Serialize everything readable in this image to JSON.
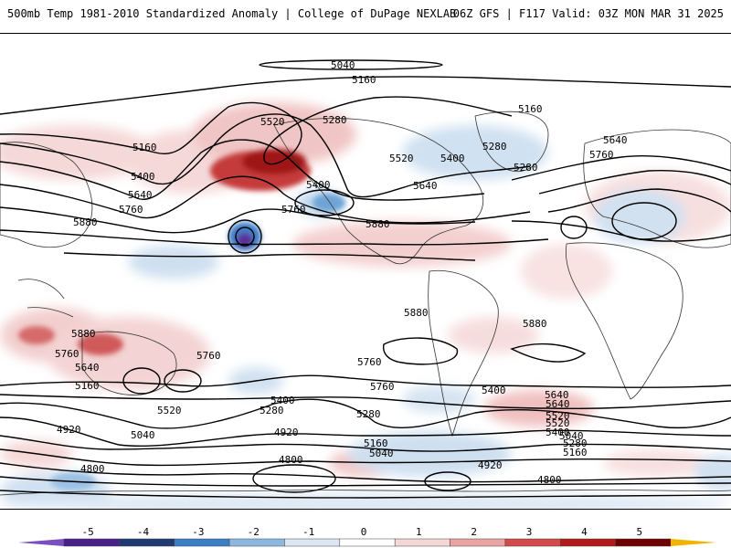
{
  "header": {
    "title": "500mb Temp 1981-2010 Standardized Anomaly | College of DuPage NEXLAB",
    "run_info": "06Z GFS | F117 Valid: 03Z MON MAR 31 2025"
  },
  "map": {
    "contour_labels": [
      "5040",
      "5160",
      "5520",
      "5280",
      "5160",
      "5400",
      "5640",
      "5760",
      "5880",
      "5400",
      "5160",
      "5280",
      "5520",
      "5400",
      "5640",
      "5280",
      "5640",
      "5760",
      "5760",
      "5880",
      "5880",
      "5880",
      "5880",
      "5760",
      "5760",
      "5640",
      "5160",
      "5520",
      "5400",
      "5280",
      "5040",
      "4920",
      "4920",
      "4800",
      "4800",
      "5040",
      "5160",
      "5280",
      "5400",
      "5520",
      "5640",
      "5760",
      "5760",
      "5640",
      "5520",
      "5400",
      "5280",
      "5160",
      "5040",
      "4920",
      "4800"
    ]
  },
  "colorbar": {
    "ticks": [
      "-5",
      "-4",
      "-3",
      "-2",
      "-1",
      "0",
      "1",
      "2",
      "3",
      "4",
      "5"
    ],
    "colors": [
      "#4b1f8a",
      "#1f3a73",
      "#3a7fc6",
      "#8cb8e0",
      "#dbe7f3",
      "#ffffff",
      "#f5d6d6",
      "#e9a3a3",
      "#d24a4a",
      "#b01a1a",
      "#6e0000"
    ],
    "end_left_color": "#7a4fc0",
    "end_right_color": "#f0b400"
  }
}
